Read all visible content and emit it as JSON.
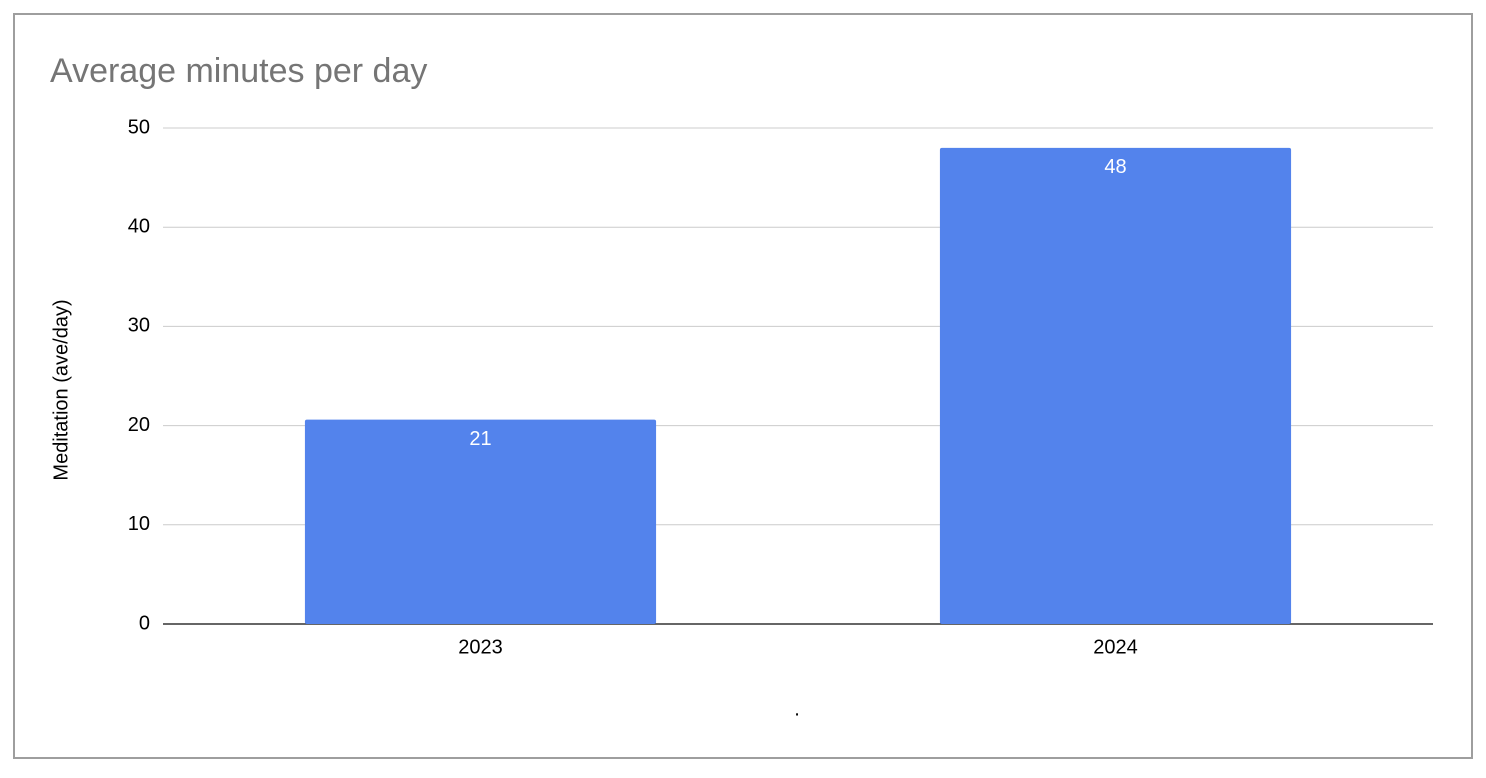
{
  "chart_data": {
    "type": "bar",
    "title": "Average minutes per day",
    "y_label": "Meditation (ave/day)",
    "x_label": ".",
    "categories": [
      "2023",
      "2024"
    ],
    "values": [
      20.6,
      48
    ],
    "value_labels": [
      "21",
      "48"
    ],
    "color": "#5383ec",
    "ylim": [
      0,
      50
    ],
    "yticks": [
      0,
      10,
      20,
      30,
      40,
      50
    ],
    "grid": true
  }
}
